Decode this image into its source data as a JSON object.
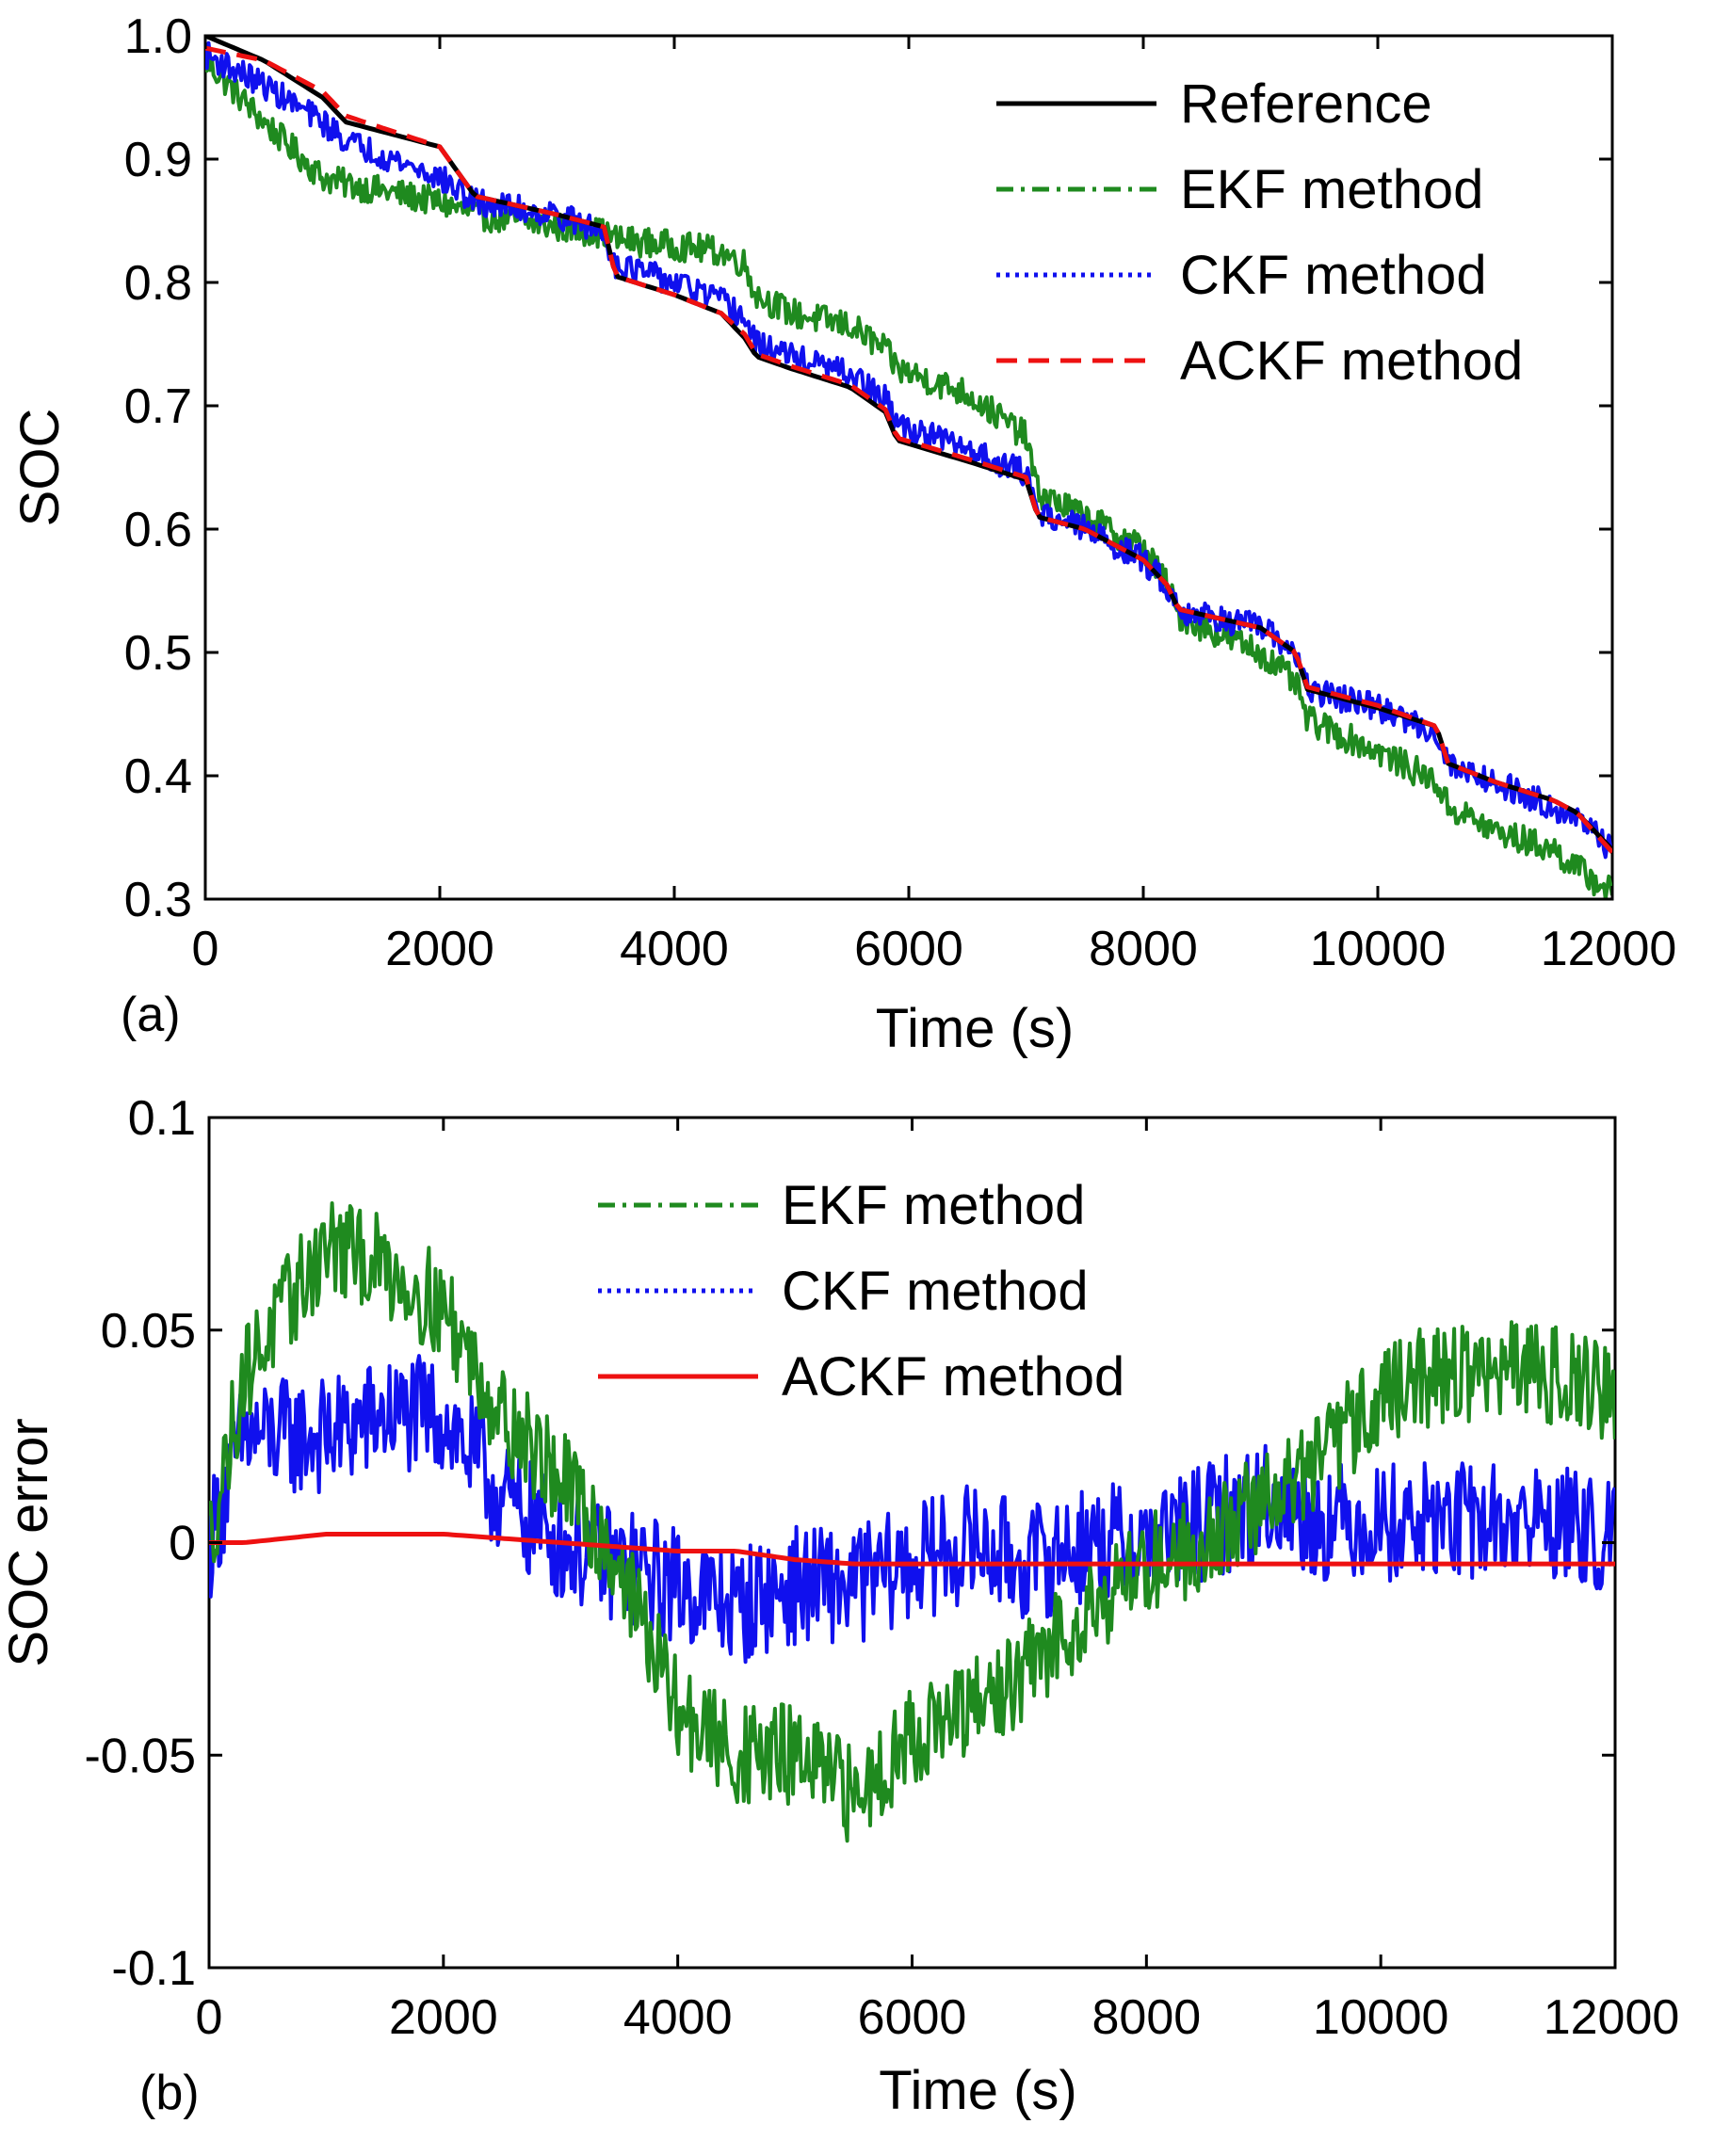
{
  "colors": {
    "reference": "#000000",
    "ekf": "#1f8a1f",
    "ckf": "#1010ee",
    "ackf": "#ee1111"
  },
  "chart_data": [
    {
      "type": "line",
      "panel_label": "(a)",
      "xlabel": "Time (s)",
      "ylabel": "SOC",
      "xlim": [
        0,
        12000
      ],
      "ylim": [
        0.3,
        1.0
      ],
      "xticks": [
        0,
        2000,
        4000,
        6000,
        8000,
        10000,
        12000
      ],
      "xtick_labels": [
        "0",
        "2000",
        "4000",
        "6000",
        "8000",
        "10000",
        "12000"
      ],
      "yticks": [
        0.3,
        0.4,
        0.5,
        0.6,
        0.7,
        0.8,
        0.9,
        1.0
      ],
      "ytick_labels": [
        "0.3",
        "0.4",
        "0.5",
        "0.6",
        "0.7",
        "0.8",
        "0.9",
        "1.0"
      ],
      "legend_position": "top-right",
      "x": [
        0,
        500,
        1000,
        1200,
        2000,
        2300,
        3000,
        3400,
        3500,
        4000,
        4400,
        4600,
        4700,
        5000,
        5500,
        5800,
        5900,
        6500,
        7000,
        7100,
        7500,
        8000,
        8200,
        8300,
        9000,
        9300,
        9400,
        10000,
        10500,
        10600,
        11000,
        11500,
        11700,
        12000
      ],
      "series": [
        {
          "name": "Reference",
          "legend": "Reference",
          "style": "solid",
          "noise": 0,
          "values": [
            1.0,
            0.98,
            0.95,
            0.93,
            0.91,
            0.87,
            0.855,
            0.845,
            0.805,
            0.79,
            0.775,
            0.755,
            0.74,
            0.73,
            0.715,
            0.695,
            0.672,
            0.655,
            0.64,
            0.61,
            0.6,
            0.575,
            0.555,
            0.535,
            0.52,
            0.5,
            0.47,
            0.455,
            0.44,
            0.41,
            0.395,
            0.38,
            0.37,
            0.34
          ]
        },
        {
          "name": "EKF method",
          "legend": "EKF method",
          "style": "dashdot",
          "noise": 0.012,
          "values": [
            0.98,
            0.93,
            0.885,
            0.88,
            0.865,
            0.855,
            0.845,
            0.84,
            0.835,
            0.83,
            0.825,
            0.815,
            0.79,
            0.775,
            0.765,
            0.745,
            0.73,
            0.71,
            0.675,
            0.63,
            0.61,
            0.585,
            0.555,
            0.53,
            0.5,
            0.475,
            0.445,
            0.42,
            0.395,
            0.375,
            0.355,
            0.34,
            0.325,
            0.305
          ]
        },
        {
          "name": "CKF method",
          "legend": "CKF method",
          "style": "dotted",
          "noise": 0.011,
          "values": [
            0.985,
            0.96,
            0.93,
            0.915,
            0.885,
            0.865,
            0.855,
            0.84,
            0.815,
            0.8,
            0.785,
            0.77,
            0.75,
            0.74,
            0.725,
            0.705,
            0.685,
            0.665,
            0.645,
            0.615,
            0.6,
            0.575,
            0.555,
            0.535,
            0.52,
            0.5,
            0.47,
            0.455,
            0.435,
            0.41,
            0.395,
            0.375,
            0.365,
            0.34
          ]
        },
        {
          "name": "ACKF method",
          "legend": "ACKF method",
          "style": "dashed",
          "noise": 0,
          "values": [
            0.99,
            0.98,
            0.955,
            0.935,
            0.91,
            0.87,
            0.855,
            0.845,
            0.805,
            0.79,
            0.775,
            0.758,
            0.742,
            0.732,
            0.717,
            0.697,
            0.674,
            0.657,
            0.642,
            0.61,
            0.6,
            0.575,
            0.555,
            0.535,
            0.52,
            0.5,
            0.472,
            0.457,
            0.44,
            0.41,
            0.395,
            0.38,
            0.37,
            0.338
          ]
        }
      ]
    },
    {
      "type": "line",
      "panel_label": "(b)",
      "xlabel": "Time (s)",
      "ylabel": "SOC error",
      "xlim": [
        0,
        12000
      ],
      "ylim": [
        -0.1,
        0.1
      ],
      "xticks": [
        0,
        2000,
        4000,
        6000,
        8000,
        10000,
        12000
      ],
      "xtick_labels": [
        "0",
        "2000",
        "4000",
        "6000",
        "8000",
        "10000",
        "12000"
      ],
      "yticks": [
        -0.1,
        -0.05,
        0,
        0.05,
        0.1
      ],
      "ytick_labels": [
        "-0.1",
        "-0.05",
        "0",
        "0.05",
        "0.1"
      ],
      "legend_position": "top-center",
      "x": [
        0,
        300,
        1000,
        1500,
        2000,
        2500,
        3000,
        3500,
        4000,
        4500,
        5000,
        5500,
        6000,
        6500,
        7000,
        7500,
        8000,
        8500,
        9000,
        9500,
        10000,
        10500,
        11000,
        11500,
        12000
      ],
      "series": [
        {
          "name": "EKF method",
          "legend": "EKF method",
          "style": "dashdot",
          "noise": 0.012,
          "values": [
            0.0,
            0.04,
            0.07,
            0.065,
            0.055,
            0.03,
            0.015,
            -0.005,
            -0.04,
            -0.05,
            -0.05,
            -0.06,
            -0.045,
            -0.04,
            -0.03,
            -0.015,
            -0.005,
            0.0,
            0.01,
            0.02,
            0.035,
            0.04,
            0.04,
            0.04,
            0.035
          ]
        },
        {
          "name": "CKF method",
          "legend": "CKF method",
          "style": "dotted",
          "noise": 0.014,
          "values": [
            0.0,
            0.025,
            0.025,
            0.03,
            0.03,
            0.01,
            0.0,
            -0.005,
            -0.01,
            -0.015,
            -0.01,
            -0.01,
            -0.005,
            0.0,
            -0.005,
            0.0,
            0.0,
            0.005,
            0.01,
            0.005,
            0.005,
            0.005,
            0.005,
            0.005,
            0.0
          ]
        },
        {
          "name": "ACKF method",
          "legend": "ACKF method",
          "style": "solid",
          "noise": 0,
          "values": [
            0.0,
            0.0,
            0.002,
            0.002,
            0.002,
            0.001,
            0.0,
            -0.001,
            -0.002,
            -0.002,
            -0.004,
            -0.005,
            -0.005,
            -0.005,
            -0.005,
            -0.005,
            -0.005,
            -0.005,
            -0.005,
            -0.005,
            -0.005,
            -0.005,
            -0.005,
            -0.005,
            -0.005
          ]
        }
      ]
    }
  ]
}
